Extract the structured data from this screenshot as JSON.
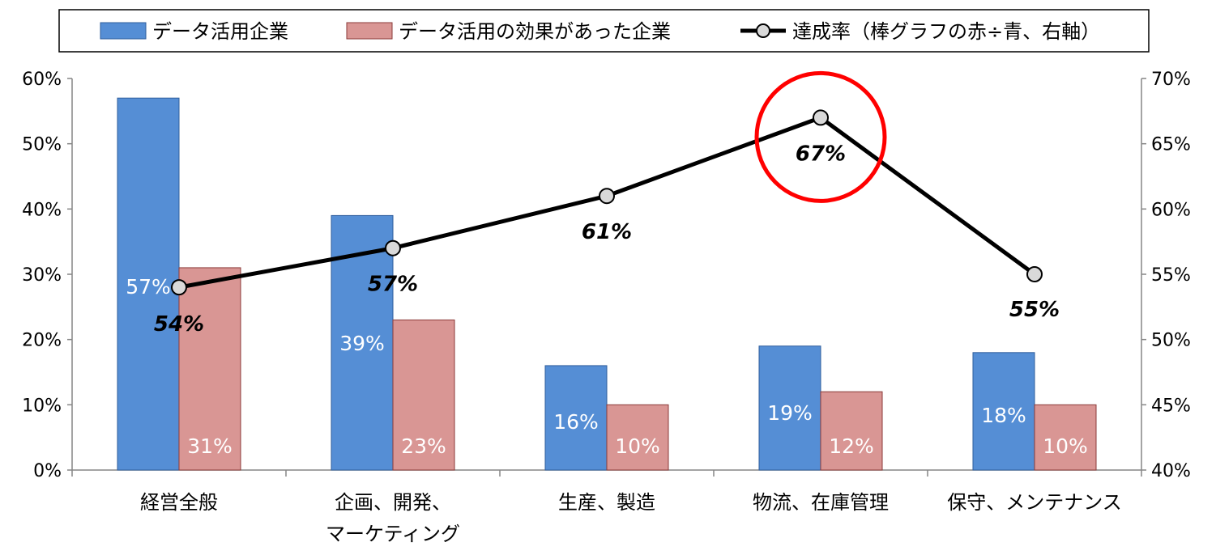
{
  "chart_data": {
    "type": "bar",
    "categories": [
      [
        "経営全般"
      ],
      [
        "企画、開発、",
        "マーケティング"
      ],
      [
        "生産、製造"
      ],
      [
        "物流、在庫管理"
      ],
      [
        "保守、メンテナンス"
      ]
    ],
    "series": [
      {
        "name": "データ活用企業",
        "type": "bar",
        "axis": "left",
        "values": [
          0.57,
          0.39,
          0.16,
          0.19,
          0.18
        ],
        "labels": [
          "57%",
          "39%",
          "16%",
          "19%",
          "18%"
        ],
        "color": "#558ed5",
        "border": "#2e5d9c"
      },
      {
        "name": "データ活用の効果があった企業",
        "type": "bar",
        "axis": "left",
        "values": [
          0.31,
          0.23,
          0.1,
          0.12,
          0.1
        ],
        "labels": [
          "31%",
          "23%",
          "10%",
          "12%",
          "10%"
        ],
        "color": "#d99694",
        "border": "#8b3a38"
      },
      {
        "name": "達成率（棒グラフの赤÷青、右軸）",
        "type": "line",
        "axis": "right",
        "values": [
          0.54,
          0.57,
          0.61,
          0.67,
          0.55
        ],
        "labels": [
          "54%",
          "57%",
          "61%",
          "67%",
          "55%"
        ],
        "color": "#000000",
        "marker_fill": "#d9d9d9"
      }
    ],
    "y_left": {
      "min": 0,
      "max": 0.6,
      "ticks": [
        0,
        0.1,
        0.2,
        0.3,
        0.4,
        0.5,
        0.6
      ],
      "tick_labels": [
        "0%",
        "10%",
        "20%",
        "30%",
        "40%",
        "50%",
        "60%"
      ]
    },
    "y_right": {
      "min": 0.4,
      "max": 0.7,
      "ticks": [
        0.4,
        0.45,
        0.5,
        0.55,
        0.6,
        0.65,
        0.7
      ],
      "tick_labels": [
        "40%",
        "45%",
        "50%",
        "55%",
        "60%",
        "65%",
        "70%"
      ]
    },
    "grid": false,
    "legend_position": "top",
    "highlight": {
      "category_index": 3,
      "shape": "circle",
      "color": "#ff0000"
    }
  }
}
